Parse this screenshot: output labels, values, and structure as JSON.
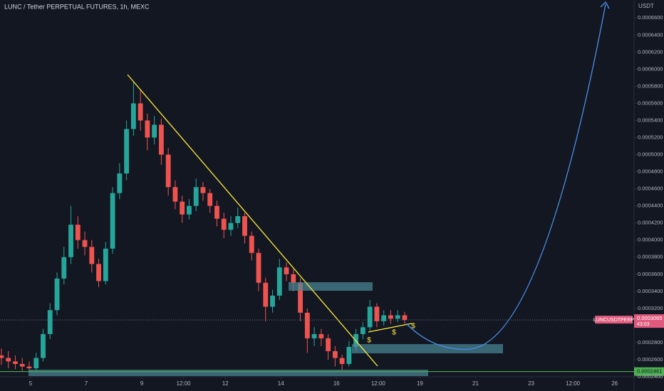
{
  "chart_data": {
    "type": "candlestick",
    "title": "LUNC / Tether PERPETUAL FUTURES, 1h, MEXC",
    "y_axis_label": "USDT",
    "symbol": "LUNCUSDTPERP",
    "countdown": "43:03",
    "up_color": "#26a69a",
    "down_color": "#ef5350",
    "grid": false,
    "x": [
      3.95,
      4.2,
      4.45,
      4.7,
      4.95,
      5.2,
      5.45,
      5.7,
      5.95,
      6.2,
      6.45,
      6.7,
      6.95,
      7.2,
      7.45,
      7.7,
      7.95,
      8.2,
      8.45,
      8.7,
      8.95,
      9.2,
      9.45,
      9.7,
      9.95,
      10.2,
      10.45,
      10.7,
      10.95,
      11.2,
      11.45,
      11.7,
      11.95,
      12.2,
      12.45,
      12.7,
      12.95,
      13.2,
      13.45,
      13.7,
      13.95,
      14.2,
      14.45,
      14.7,
      14.95,
      15.2,
      15.45,
      15.7,
      15.95,
      16.2,
      16.45,
      16.7,
      16.95,
      17.2,
      17.45,
      17.7,
      17.95,
      18.2,
      18.45
    ],
    "open": [
      0.000265,
      0.000262,
      0.000258,
      0.000255,
      0.000252,
      0.00025,
      0.000262,
      0.00029,
      0.000318,
      0.000355,
      0.00038,
      0.000418,
      0.0004,
      0.000392,
      0.000372,
      0.000352,
      0.00039,
      0.000455,
      0.000478,
      0.00053,
      0.00056,
      0.00054,
      0.00052,
      0.000535,
      0.0005,
      0.000462,
      0.000445,
      0.00043,
      0.00044,
      0.000462,
      0.000455,
      0.00044,
      0.000425,
      0.000412,
      0.00042,
      0.000428,
      0.000405,
      0.000385,
      0.00035,
      0.000322,
      0.000335,
      0.000368,
      0.00036,
      0.00035,
      0.000315,
      0.000285,
      0.00029,
      0.000285,
      0.00027,
      0.000262,
      0.000255,
      0.000275,
      0.00029,
      0.000298,
      0.000322,
      0.000305,
      0.000312,
      0.000308,
      0.000312
    ],
    "high": [
      0.000273,
      0.00027,
      0.000265,
      0.000262,
      0.000258,
      0.000268,
      0.000296,
      0.000326,
      0.000362,
      0.000392,
      0.00044,
      0.000428,
      0.00041,
      0.0004,
      0.000378,
      0.000398,
      0.000462,
      0.00049,
      0.00054,
      0.000585,
      0.000575,
      0.000548,
      0.000545,
      0.000542,
      0.000508,
      0.00047,
      0.000452,
      0.000448,
      0.000472,
      0.000468,
      0.00046,
      0.000446,
      0.000432,
      0.000428,
      0.000438,
      0.000432,
      0.00041,
      0.00039,
      0.000356,
      0.000342,
      0.000378,
      0.000374,
      0.000366,
      0.000355,
      0.00032,
      0.000298,
      0.000296,
      0.00029,
      0.000276,
      0.000266,
      0.000282,
      0.000296,
      0.000304,
      0.00033,
      0.000326,
      0.000318,
      0.000318,
      0.000318,
      0.000316
    ],
    "low": [
      0.000254,
      0.00025,
      0.000249,
      0.000246,
      0.000247,
      0.000246,
      0.000258,
      0.000284,
      0.000312,
      0.000348,
      0.000372,
      0.00039,
      0.000382,
      0.000362,
      0.000345,
      0.000348,
      0.000384,
      0.000448,
      0.00047,
      0.000522,
      0.000528,
      0.000505,
      0.000512,
      0.000488,
      0.000452,
      0.000436,
      0.00042,
      0.000424,
      0.000434,
      0.000446,
      0.000432,
      0.000416,
      0.000402,
      0.000405,
      0.000414,
      0.000396,
      0.000376,
      0.00034,
      0.000305,
      0.000315,
      0.00033,
      0.000352,
      0.00034,
      0.000305,
      0.000268,
      0.000276,
      0.000276,
      0.00026,
      0.000252,
      0.000248,
      0.000252,
      0.00027,
      0.000284,
      0.000294,
      0.000298,
      0.0003,
      0.000302,
      0.000304,
      0.000302
    ],
    "close": [
      0.000262,
      0.000258,
      0.000255,
      0.000252,
      0.00025,
      0.000262,
      0.00029,
      0.000318,
      0.000355,
      0.00038,
      0.000418,
      0.0004,
      0.000392,
      0.000372,
      0.000352,
      0.00039,
      0.000455,
      0.000478,
      0.00053,
      0.00056,
      0.00054,
      0.00052,
      0.000535,
      0.0005,
      0.000462,
      0.000445,
      0.00043,
      0.00044,
      0.000462,
      0.000455,
      0.00044,
      0.000425,
      0.000412,
      0.00042,
      0.000428,
      0.000405,
      0.000385,
      0.00035,
      0.000322,
      0.000335,
      0.000368,
      0.00036,
      0.00035,
      0.000315,
      0.000285,
      0.00029,
      0.000285,
      0.00027,
      0.000262,
      0.000255,
      0.000275,
      0.00029,
      0.000298,
      0.000322,
      0.000305,
      0.000312,
      0.000308,
      0.000312,
      0.0003065
    ],
    "xlim": [
      3.9,
      26.7
    ],
    "xticks": [
      5,
      7,
      9,
      {
        "value": 10.5,
        "label": "12:00"
      },
      12,
      14,
      16,
      {
        "value": 17.5,
        "label": "12:00"
      },
      19,
      21,
      23,
      {
        "value": 24.5,
        "label": "12:00"
      },
      26
    ],
    "ylim": [
      0.00024,
      0.000681
    ],
    "yticks": [
      {
        "value": 0.00024,
        "label": "0.0002400"
      },
      {
        "value": 0.00026,
        "label": "0.0002600"
      },
      {
        "value": 0.00028,
        "label": "0.0002800"
      },
      {
        "value": 0.00032,
        "label": "0.0003200"
      },
      {
        "value": 0.00034,
        "label": "0.0003400"
      },
      {
        "value": 0.00036,
        "label": "0.0003600"
      },
      {
        "value": 0.00038,
        "label": "0.0003800"
      },
      {
        "value": 0.0004,
        "label": "0.0004000"
      },
      {
        "value": 0.00042,
        "label": "0.0004200"
      },
      {
        "value": 0.00044,
        "label": "0.0004400"
      },
      {
        "value": 0.00046,
        "label": "0.0004600"
      },
      {
        "value": 0.00048,
        "label": "0.0004800"
      },
      {
        "value": 0.0005,
        "label": "0.0005000"
      },
      {
        "value": 0.00052,
        "label": "0.0005200"
      },
      {
        "value": 0.00054,
        "label": "0.0005400"
      },
      {
        "value": 0.00056,
        "label": "0.0005600"
      },
      {
        "value": 0.00058,
        "label": "0.0005800"
      },
      {
        "value": 0.0006,
        "label": "0.0006000"
      },
      {
        "value": 0.00062,
        "label": "0.0006200"
      },
      {
        "value": 0.00064,
        "label": "0.0006400"
      },
      {
        "value": 0.00066,
        "label": "0.0006600"
      }
    ],
    "horizontal_line": {
      "value": 0.0002461,
      "color": "#4caf50"
    },
    "annotations": [
      "$",
      "$",
      "$"
    ]
  }
}
